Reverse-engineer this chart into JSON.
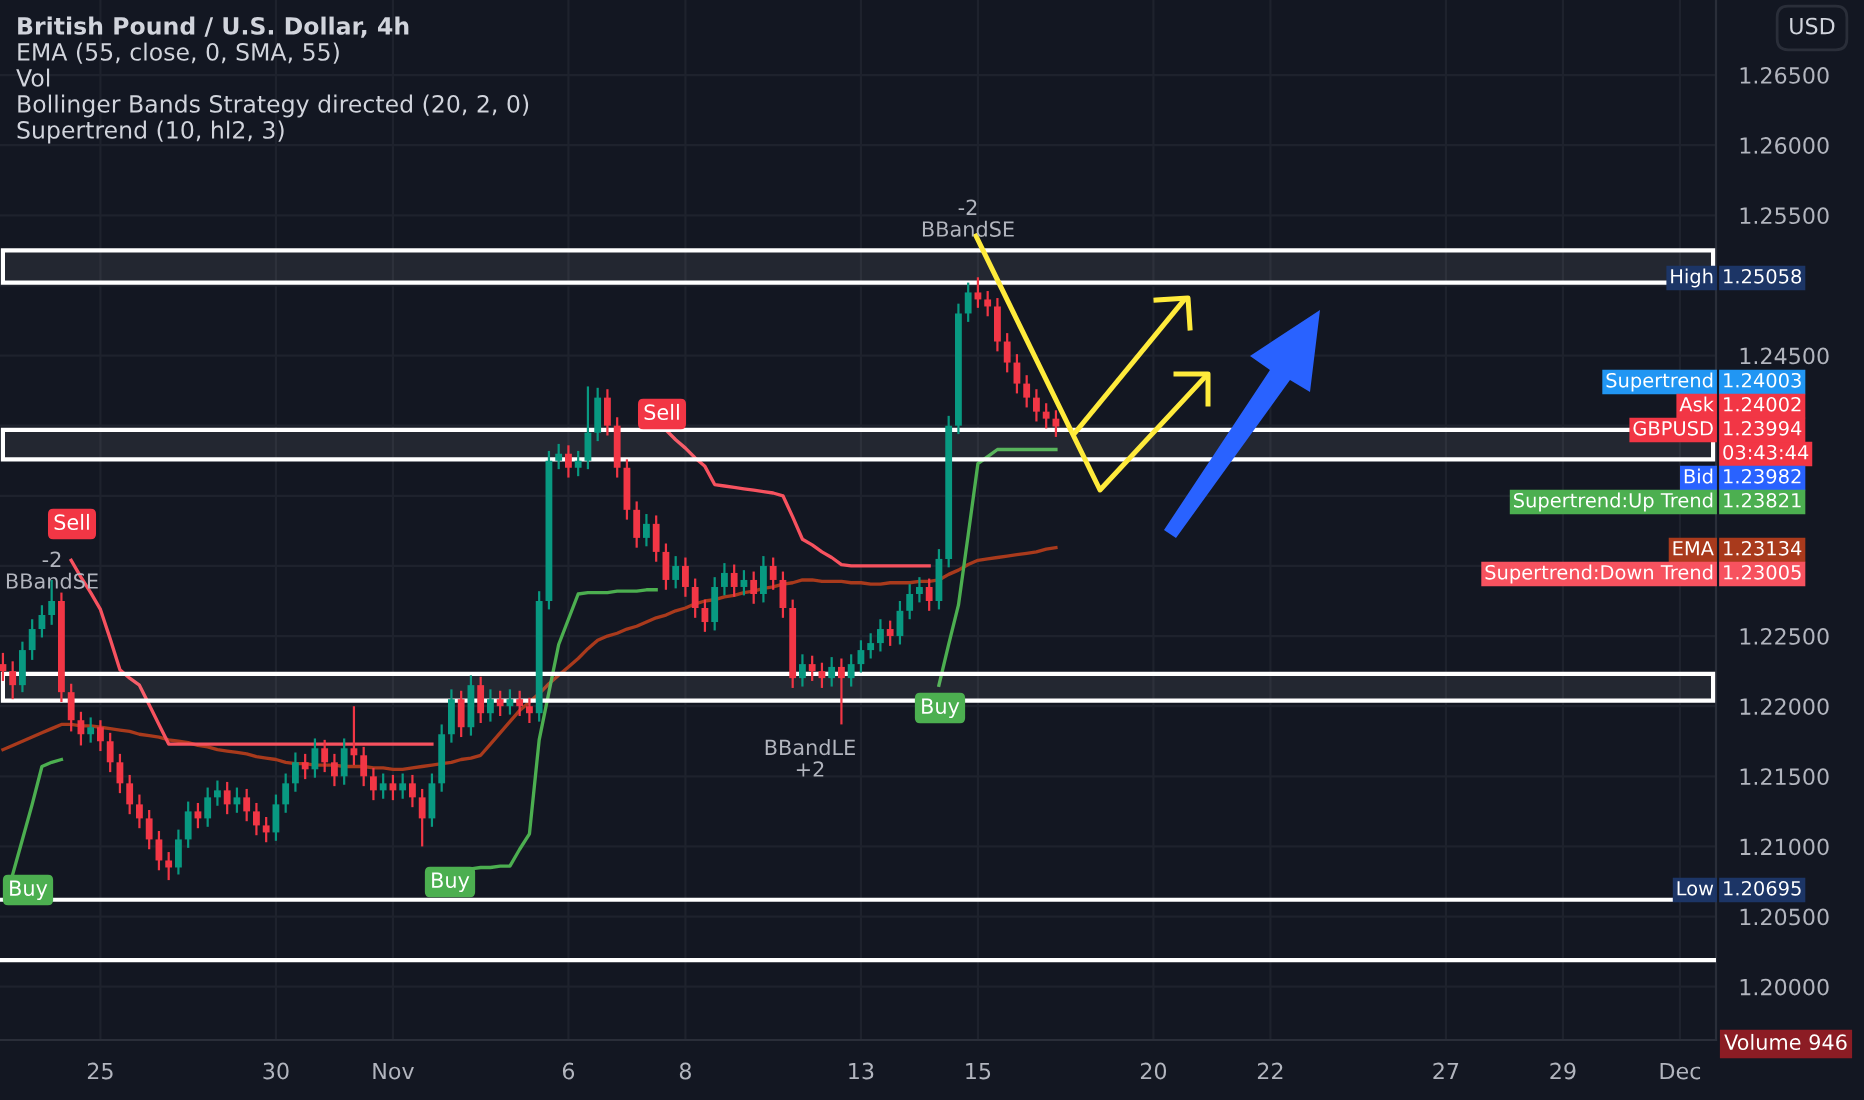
{
  "chart_data": {
    "type": "candlestick",
    "title": "British Pound / U.S. Dollar, 4h",
    "categories": [
      null,
      null,
      null,
      null,
      null,
      null,
      null,
      null,
      null,
      null,
      "25",
      null,
      null,
      null,
      null,
      null,
      null,
      null,
      null,
      null,
      null,
      null,
      null,
      null,
      null,
      null,
      null,
      null,
      "30",
      null,
      null,
      null,
      null,
      null,
      null,
      null,
      null,
      null,
      null,
      null,
      "Nov",
      null,
      null,
      null,
      null,
      null,
      null,
      null,
      null,
      null,
      null,
      null,
      null,
      null,
      null,
      null,
      null,
      null,
      "6",
      null,
      null,
      null,
      null,
      null,
      null,
      null,
      null,
      null,
      null,
      null,
      "8",
      null,
      null,
      null,
      null,
      null,
      null,
      null,
      null,
      null,
      null,
      null,
      null,
      null,
      null,
      null,
      null,
      null,
      "13",
      null,
      null,
      null,
      null,
      null,
      null,
      null,
      null,
      null,
      null,
      null,
      "15",
      null,
      null,
      null,
      null,
      null,
      null,
      null,
      null,
      null,
      null,
      null,
      null,
      null,
      null,
      null,
      null,
      null,
      "20",
      null,
      null,
      null,
      null,
      null,
      null,
      null,
      null,
      null,
      null,
      null,
      "22",
      null,
      null,
      null,
      null,
      null,
      null,
      null,
      null,
      null,
      null,
      null,
      null,
      null,
      null,
      null,
      null,
      null,
      "27",
      null,
      null,
      null,
      null,
      null,
      null,
      null,
      null,
      null,
      null,
      null,
      "29",
      null,
      null,
      null,
      null,
      null,
      null,
      null,
      null,
      null,
      null,
      null,
      "Dec",
      null,
      null,
      null
    ],
    "ohlc": [
      [
        1.223,
        1.2238,
        1.2218,
        1.2225
      ],
      [
        1.2225,
        1.2232,
        1.2205,
        1.2215
      ],
      [
        1.2215,
        1.2246,
        1.221,
        1.224
      ],
      [
        1.224,
        1.2262,
        1.2233,
        1.2255
      ],
      [
        1.2255,
        1.2272,
        1.2249,
        1.2265
      ],
      [
        1.2265,
        1.229,
        1.2258,
        1.2275
      ],
      [
        1.2275,
        1.2281,
        1.2203,
        1.221
      ],
      [
        1.221,
        1.2216,
        1.2182,
        1.219
      ],
      [
        1.219,
        1.2196,
        1.2172,
        1.218
      ],
      [
        1.218,
        1.2192,
        1.2174,
        1.2185
      ],
      [
        1.2185,
        1.219,
        1.2168,
        1.2175
      ],
      [
        1.2175,
        1.2181,
        1.2153,
        1.216
      ],
      [
        1.216,
        1.2166,
        1.2138,
        1.2145
      ],
      [
        1.2145,
        1.2151,
        1.2123,
        1.213
      ],
      [
        1.213,
        1.2137,
        1.2113,
        1.212
      ],
      [
        1.212,
        1.2126,
        1.2098,
        1.2105
      ],
      [
        1.2105,
        1.2111,
        1.2083,
        1.209
      ],
      [
        1.209,
        1.2096,
        1.2076,
        1.2085
      ],
      [
        1.2085,
        1.2112,
        1.208,
        1.2105
      ],
      [
        1.2105,
        1.2132,
        1.2099,
        1.2125
      ],
      [
        1.2125,
        1.2131,
        1.2113,
        1.212
      ],
      [
        1.212,
        1.2142,
        1.2114,
        1.2135
      ],
      [
        1.2135,
        1.2147,
        1.2129,
        1.214
      ],
      [
        1.214,
        1.2146,
        1.2123,
        1.213
      ],
      [
        1.213,
        1.2142,
        1.2124,
        1.2135
      ],
      [
        1.2135,
        1.2141,
        1.2118,
        1.2125
      ],
      [
        1.2125,
        1.2131,
        1.2108,
        1.2115
      ],
      [
        1.2115,
        1.2121,
        1.2103,
        1.211
      ],
      [
        1.211,
        1.2137,
        1.2104,
        1.213
      ],
      [
        1.213,
        1.2152,
        1.2124,
        1.2145
      ],
      [
        1.2145,
        1.2167,
        1.2139,
        1.216
      ],
      [
        1.216,
        1.2166,
        1.2148,
        1.2155
      ],
      [
        1.2155,
        1.2177,
        1.2149,
        1.217
      ],
      [
        1.217,
        1.2176,
        1.2153,
        1.216
      ],
      [
        1.216,
        1.2166,
        1.2143,
        1.215
      ],
      [
        1.215,
        1.2177,
        1.2144,
        1.217
      ],
      [
        1.217,
        1.22,
        1.2158,
        1.2165
      ],
      [
        1.2165,
        1.2171,
        1.2143,
        1.215
      ],
      [
        1.215,
        1.2156,
        1.2133,
        1.214
      ],
      [
        1.214,
        1.2152,
        1.2134,
        1.2145
      ],
      [
        1.2145,
        1.2151,
        1.2133,
        1.214
      ],
      [
        1.214,
        1.2152,
        1.2134,
        1.2145
      ],
      [
        1.2145,
        1.2151,
        1.2128,
        1.2135
      ],
      [
        1.2135,
        1.2141,
        1.21,
        1.212
      ],
      [
        1.212,
        1.2152,
        1.2114,
        1.2145
      ],
      [
        1.2145,
        1.2187,
        1.2139,
        1.218
      ],
      [
        1.218,
        1.2212,
        1.2174,
        1.2205
      ],
      [
        1.2205,
        1.2211,
        1.2178,
        1.2185
      ],
      [
        1.2185,
        1.2222,
        1.2179,
        1.2215
      ],
      [
        1.2215,
        1.2221,
        1.2188,
        1.2195
      ],
      [
        1.2195,
        1.2212,
        1.2189,
        1.2205
      ],
      [
        1.2205,
        1.2211,
        1.2193,
        1.22
      ],
      [
        1.22,
        1.2212,
        1.2194,
        1.2205
      ],
      [
        1.2205,
        1.2211,
        1.2193,
        1.22
      ],
      [
        1.22,
        1.2206,
        1.2188,
        1.2195
      ],
      [
        1.2195,
        1.2282,
        1.2189,
        1.2275
      ],
      [
        1.2275,
        1.2382,
        1.2269,
        1.2375
      ],
      [
        1.2375,
        1.2387,
        1.2369,
        1.238
      ],
      [
        1.238,
        1.2386,
        1.2363,
        1.237
      ],
      [
        1.237,
        1.2382,
        1.2364,
        1.2375
      ],
      [
        1.2375,
        1.2428,
        1.2369,
        1.2395
      ],
      [
        1.2395,
        1.2427,
        1.2389,
        1.242
      ],
      [
        1.242,
        1.2426,
        1.2393,
        1.24
      ],
      [
        1.24,
        1.2406,
        1.2363,
        1.237
      ],
      [
        1.237,
        1.2376,
        1.2333,
        1.234
      ],
      [
        1.234,
        1.2346,
        1.2313,
        1.232
      ],
      [
        1.232,
        1.2337,
        1.2314,
        1.233
      ],
      [
        1.233,
        1.2336,
        1.2303,
        1.231
      ],
      [
        1.231,
        1.2316,
        1.2283,
        1.229
      ],
      [
        1.229,
        1.2307,
        1.2284,
        1.23
      ],
      [
        1.23,
        1.2306,
        1.2278,
        1.2285
      ],
      [
        1.2285,
        1.2291,
        1.2263,
        1.227
      ],
      [
        1.227,
        1.2276,
        1.2253,
        1.226
      ],
      [
        1.226,
        1.2292,
        1.2254,
        1.2285
      ],
      [
        1.2285,
        1.2302,
        1.2279,
        1.2295
      ],
      [
        1.2295,
        1.2301,
        1.2278,
        1.2285
      ],
      [
        1.2285,
        1.2297,
        1.2279,
        1.229
      ],
      [
        1.229,
        1.2296,
        1.2273,
        1.228
      ],
      [
        1.228,
        1.2307,
        1.2274,
        1.23
      ],
      [
        1.23,
        1.2306,
        1.2283,
        1.229
      ],
      [
        1.229,
        1.2296,
        1.2263,
        1.227
      ],
      [
        1.227,
        1.2276,
        1.2213,
        1.222
      ],
      [
        1.222,
        1.2237,
        1.2214,
        1.223
      ],
      [
        1.223,
        1.2236,
        1.2218,
        1.2225
      ],
      [
        1.2225,
        1.2231,
        1.2213,
        1.222
      ],
      [
        1.222,
        1.2235,
        1.2214,
        1.2228
      ],
      [
        1.2228,
        1.2234,
        1.2187,
        1.222
      ],
      [
        1.222,
        1.2237,
        1.2214,
        1.223
      ],
      [
        1.223,
        1.2247,
        1.2224,
        1.224
      ],
      [
        1.224,
        1.2252,
        1.2234,
        1.2245
      ],
      [
        1.2245,
        1.2262,
        1.2239,
        1.2255
      ],
      [
        1.2255,
        1.2261,
        1.2243,
        1.225
      ],
      [
        1.225,
        1.2275,
        1.2244,
        1.2268
      ],
      [
        1.2268,
        1.2287,
        1.2262,
        1.228
      ],
      [
        1.228,
        1.2292,
        1.2274,
        1.2285
      ],
      [
        1.2285,
        1.2291,
        1.2268,
        1.2275
      ],
      [
        1.2275,
        1.2312,
        1.2269,
        1.2305
      ],
      [
        1.2305,
        1.2407,
        1.2299,
        1.24
      ],
      [
        1.24,
        1.2487,
        1.2394,
        1.248
      ],
      [
        1.248,
        1.2502,
        1.2474,
        1.2495
      ],
      [
        1.2495,
        1.25058,
        1.2484,
        1.249
      ],
      [
        1.249,
        1.2496,
        1.2478,
        1.2485
      ],
      [
        1.2485,
        1.2491,
        1.2453,
        1.246
      ],
      [
        1.246,
        1.2466,
        1.2438,
        1.2445
      ],
      [
        1.2445,
        1.2451,
        1.2423,
        1.243
      ],
      [
        1.243,
        1.2436,
        1.2413,
        1.242
      ],
      [
        1.242,
        1.2426,
        1.2403,
        1.241
      ],
      [
        1.241,
        1.2416,
        1.2398,
        1.2405
      ],
      [
        1.2405,
        1.2411,
        1.2392,
        1.23994
      ],
      null,
      null,
      null,
      null,
      null,
      null,
      null,
      null,
      null,
      null,
      null,
      null,
      null,
      null,
      null,
      null,
      null,
      null,
      null,
      null,
      null,
      null,
      null,
      null,
      null,
      null,
      null,
      null,
      null,
      null,
      null,
      null,
      null,
      null,
      null,
      null,
      null,
      null,
      null,
      null,
      null,
      null,
      null,
      null,
      null,
      null,
      null,
      null,
      null,
      null,
      null,
      null,
      null,
      null,
      null,
      null,
      null,
      null,
      null,
      null,
      null,
      null,
      null,
      null,
      null,
      null,
      null
    ],
    "series": [
      {
        "type": "line",
        "color": "#a93a1c",
        "values": [
          1.2169,
          1.2172,
          1.2175,
          1.2178,
          1.2181,
          1.2184,
          1.2187,
          1.2187,
          1.2186,
          1.2186,
          1.2185,
          1.2184,
          1.2183,
          1.2182,
          1.218,
          1.2179,
          1.2178,
          1.2176,
          1.2175,
          1.2174,
          1.2172,
          1.2171,
          1.2169,
          1.2168,
          1.2167,
          1.2166,
          1.2164,
          1.2163,
          1.2162,
          1.216,
          1.2159,
          1.2159,
          1.2158,
          1.2158,
          1.2158,
          1.2157,
          1.2157,
          1.2157,
          1.2156,
          1.2156,
          1.2155,
          1.2155,
          1.2156,
          1.2157,
          1.2158,
          1.2159,
          1.216,
          1.2162,
          1.2163,
          1.2165,
          1.2173,
          1.2181,
          1.2189,
          1.2197,
          1.2203,
          1.2209,
          1.2216,
          1.2222,
          1.2228,
          1.2234,
          1.2241,
          1.2247,
          1.225,
          1.2252,
          1.2255,
          1.2257,
          1.226,
          1.2263,
          1.2265,
          1.2268,
          1.227,
          1.2273,
          1.2275,
          1.2276,
          1.2278,
          1.2279,
          1.2281,
          1.2282,
          1.2284,
          1.2285,
          1.2287,
          1.2288,
          1.229,
          1.229,
          1.2289,
          1.2289,
          1.2289,
          1.2288,
          1.2288,
          1.2287,
          1.2287,
          1.2288,
          1.2288,
          1.2288,
          1.2289,
          1.2289,
          1.229,
          1.2294,
          1.2297,
          1.2301,
          1.2304,
          1.2305,
          1.2306,
          1.2307,
          1.2308,
          1.2309,
          1.231,
          1.2312,
          1.2313,
          null,
          null,
          null,
          null,
          null,
          null,
          null,
          null,
          null,
          null,
          null,
          null,
          null,
          null,
          null,
          null,
          null,
          null,
          null,
          null,
          null,
          null,
          null,
          null,
          null,
          null,
          null,
          null,
          null,
          null,
          null,
          null,
          null,
          null,
          null,
          null,
          null,
          null,
          null,
          null,
          null,
          null,
          null,
          null,
          null,
          null,
          null,
          null,
          null,
          null,
          null,
          null,
          null,
          null,
          null,
          null,
          null,
          null,
          null,
          null,
          null,
          null,
          null,
          null,
          null,
          null,
          null
        ]
      },
      {
        "type": "line",
        "color": "#4caf50",
        "values": [
          null,
          1.208,
          1.2105,
          1.213,
          1.2157,
          1.216,
          1.2162,
          null,
          null,
          null,
          null,
          null,
          null,
          null,
          null,
          null,
          null,
          null,
          null,
          null,
          null,
          null,
          null,
          null,
          null,
          null,
          null,
          null,
          null,
          null,
          null,
          null,
          null,
          null,
          null,
          null,
          null,
          null,
          null,
          null,
          null,
          null,
          null,
          null,
          null,
          null,
          1.2083,
          1.2084,
          1.2084,
          1.2085,
          1.2085,
          1.2086,
          1.2086,
          1.2098,
          1.2109,
          1.2176,
          1.221,
          1.2244,
          1.2262,
          1.228,
          1.2281,
          1.2281,
          1.2281,
          1.2282,
          1.2282,
          1.2282,
          1.2283,
          1.2283,
          null,
          null,
          null,
          null,
          null,
          null,
          null,
          null,
          null,
          null,
          null,
          null,
          null,
          null,
          null,
          null,
          null,
          null,
          null,
          null,
          null,
          null,
          null,
          null,
          null,
          null,
          null,
          null,
          1.2215,
          1.2244,
          1.2272,
          1.2322,
          1.2373,
          1.2378,
          1.2383,
          1.2383,
          1.2383,
          1.2383,
          1.2383,
          1.2383,
          1.2383,
          null,
          null,
          null,
          null,
          null,
          null,
          null,
          null,
          null,
          null,
          null,
          null,
          null,
          null,
          null,
          null,
          null,
          null,
          null,
          null,
          null,
          null,
          null,
          null,
          null,
          null,
          null,
          null,
          null,
          null,
          null,
          null,
          null,
          null,
          null,
          null,
          null,
          null,
          null,
          null,
          null,
          null,
          null,
          null,
          null,
          null,
          null,
          null,
          null,
          null,
          null,
          null,
          null,
          null,
          null,
          null,
          null,
          null,
          null,
          null,
          null,
          null,
          null,
          null,
          null,
          null,
          null
        ]
      },
      {
        "type": "line",
        "color": "#f7525f",
        "values": [
          null,
          null,
          null,
          null,
          null,
          null,
          null,
          1.2304,
          1.2292,
          1.2281,
          1.2269,
          1.2248,
          1.2226,
          1.222,
          1.2215,
          1.2201,
          1.2187,
          1.2173,
          1.2173,
          1.2173,
          1.2173,
          1.2173,
          1.2173,
          1.2173,
          1.2173,
          1.2173,
          1.2173,
          1.2173,
          1.2173,
          1.2173,
          1.2173,
          1.2173,
          1.2173,
          1.2173,
          1.2173,
          1.2173,
          1.2173,
          1.2173,
          1.2173,
          1.2173,
          1.2173,
          1.2173,
          1.2173,
          1.2173,
          1.2173,
          null,
          null,
          null,
          null,
          null,
          null,
          null,
          null,
          null,
          null,
          null,
          null,
          null,
          null,
          null,
          null,
          null,
          null,
          null,
          null,
          null,
          null,
          null,
          1.2397,
          1.239,
          1.2384,
          1.2377,
          1.2371,
          1.2358,
          1.2357,
          1.2356,
          1.2355,
          1.2354,
          1.2353,
          1.2352,
          1.235,
          1.2335,
          1.2319,
          1.2315,
          1.231,
          1.2306,
          1.2301,
          1.23,
          1.23,
          1.23,
          1.23,
          1.23,
          1.23,
          1.23,
          1.23,
          1.23,
          null,
          null,
          null,
          null,
          null,
          null,
          null,
          null,
          null,
          null,
          null,
          null,
          null,
          null,
          null,
          null,
          null,
          null,
          null,
          null,
          null,
          null,
          null,
          null,
          null,
          null,
          null,
          null,
          null,
          null,
          null,
          null,
          null,
          null,
          null,
          null,
          null,
          null,
          null,
          null,
          null,
          null,
          null,
          null,
          null,
          null,
          null,
          null,
          null,
          null,
          null,
          null,
          null,
          null,
          null,
          null,
          null,
          null,
          null,
          null,
          null,
          null,
          null,
          null,
          null,
          null,
          null,
          null,
          null,
          null,
          null,
          null,
          null,
          null,
          null,
          null,
          null,
          null,
          null,
          null
        ]
      }
    ],
    "ylim": [
      1.1962,
      1.27035
    ],
    "yticks": [
      {
        "value": 1.2,
        "label": "1.20000"
      },
      {
        "value": 1.205,
        "label": "1.20500"
      },
      {
        "value": 1.21,
        "label": "1.21000"
      },
      {
        "value": 1.215,
        "label": "1.21500"
      },
      {
        "value": 1.22,
        "label": "1.22000"
      },
      {
        "value": 1.225,
        "label": "1.22500"
      },
      {
        "value": 1.23,
        "label": null
      },
      {
        "value": 1.235,
        "label": null
      },
      {
        "value": 1.24,
        "label": null
      },
      {
        "value": 1.245,
        "label": "1.24500"
      },
      {
        "value": 1.25,
        "label": null
      },
      {
        "value": 1.255,
        "label": "1.25500"
      },
      {
        "value": 1.26,
        "label": "1.26000"
      },
      {
        "value": 1.265,
        "label": "1.26500"
      }
    ],
    "grid": true,
    "bands": [
      {
        "axis": "y",
        "from": 1.2502,
        "to": 1.2525,
        "color": "#ffffff"
      },
      {
        "axis": "y",
        "from": 1.2376,
        "to": 1.2397,
        "color": "#ffffff"
      },
      {
        "axis": "y",
        "from": 1.2204,
        "to": 1.2223,
        "color": "#ffffff"
      }
    ],
    "ref_lines": [
      {
        "axis": "y",
        "value": 1.2062,
        "color": "#ffffff",
        "line_style": "solid"
      },
      {
        "axis": "y",
        "value": 1.2019,
        "color": "#ffffff",
        "line_style": "solid"
      }
    ],
    "annotations": [
      "EMA (55, close, 0, SMA, 55)",
      "Vol",
      "Bollinger Bands Strategy directed (20, 2, 0)",
      "Supertrend (10, hl2, 3)",
      "USD",
      "03:43:44",
      "Volume 946",
      "Sell",
      "-2\nBBandSE",
      "Sell",
      "Buy",
      "Buy",
      "Buy",
      "-2\nBBandSE",
      "BBandLE\n+2",
      "High 1.25058",
      "Supertrend 1.24003",
      "Ask 1.24002",
      "GBPUSD 1.23994",
      "Bid 1.23982",
      "Supertrend:Up Trend 1.23821",
      "EMA 1.23134",
      "Supertrend:Down Trend 1.23005",
      "Low 1.20695"
    ]
  }
}
